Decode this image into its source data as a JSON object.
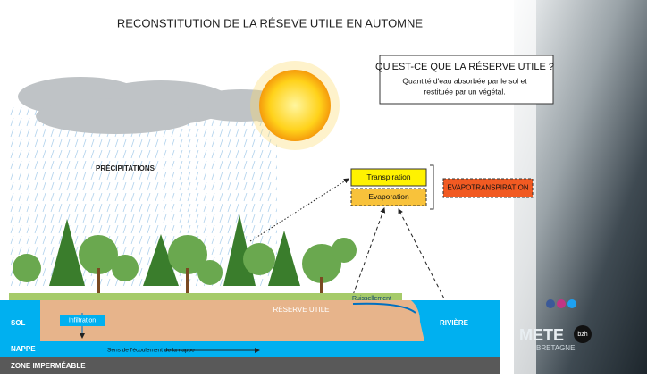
{
  "header": {
    "title": "RECONSTITUTION DE LA RÉSEVE UTILE EN AUTOMNE"
  },
  "info_box": {
    "title": "QU'EST-CE QUE LA RÉSERVE UTILE ?",
    "text_line1": "Quantité d'eau absorbée par le sol et",
    "text_line2": "restituée par un végétal."
  },
  "labels": {
    "precipitations": "PRÉCIPITATIONS",
    "transpiration": "Transpiration",
    "evaporation": "Evaporation",
    "evapotranspiration": "EVAPOTRANSPIRATION",
    "sol": "SOL",
    "infiltration": "Infiltration",
    "reserve_utile": "RÉSERVE UTILE",
    "ruissellement": "Ruissellement",
    "riviere": "RIVIÈRE",
    "nappe": "NAPPE",
    "ecoulement": "Sens de l'écoulement de la nappe",
    "zone": "ZONE IMPERMÉABLE"
  },
  "logo": {
    "word": "METE",
    "badge": "bzh",
    "region": "BRETAGNE"
  }
}
